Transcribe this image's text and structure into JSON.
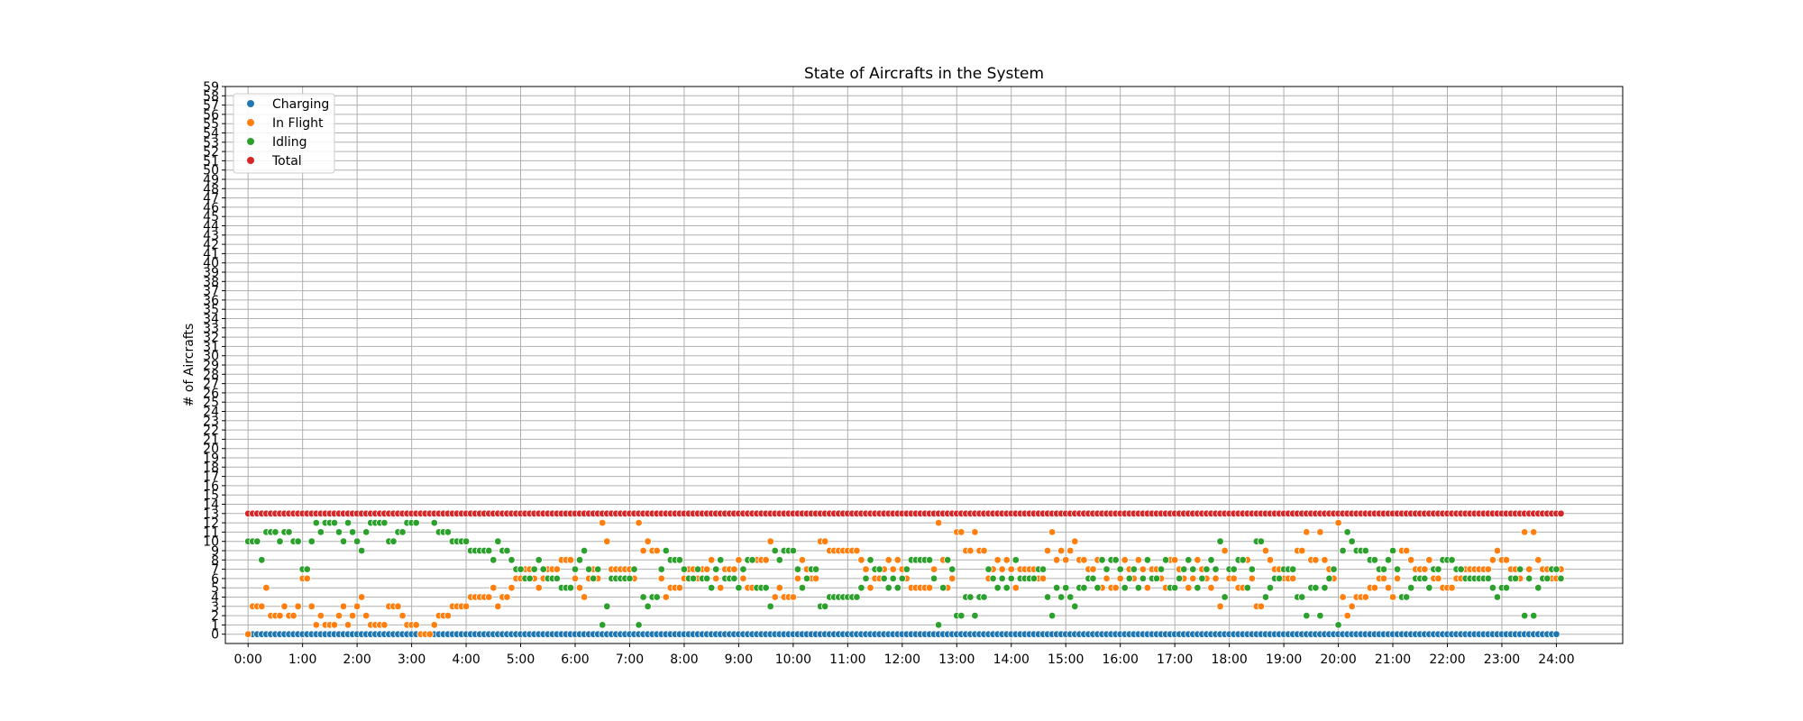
{
  "chart_data": {
    "type": "scatter",
    "title": "State of Aircrafts in the System",
    "xlabel": "",
    "ylabel": "# of Aircrafts",
    "xlim": [
      -25,
      1513
    ],
    "ylim": [
      -1,
      59
    ],
    "x_unit": "minutes since 0:00",
    "x_tick_values": [
      0,
      60,
      120,
      180,
      240,
      300,
      360,
      420,
      480,
      540,
      600,
      660,
      720,
      780,
      840,
      900,
      960,
      1020,
      1080,
      1140,
      1200,
      1260,
      1320,
      1380,
      1440
    ],
    "x_tick_labels": [
      "0:00",
      "1:00",
      "2:00",
      "3:00",
      "4:00",
      "5:00",
      "6:00",
      "7:00",
      "8:00",
      "9:00",
      "10:00",
      "11:00",
      "12:00",
      "13:00",
      "14:00",
      "15:00",
      "16:00",
      "17:00",
      "18:00",
      "19:00",
      "20:00",
      "21:00",
      "22:00",
      "23:00",
      "24:00"
    ],
    "y_ticks": [
      0,
      1,
      2,
      3,
      4,
      5,
      6,
      7,
      8,
      9,
      10,
      11,
      12,
      13,
      14,
      15,
      16,
      17,
      18,
      19,
      20,
      21,
      22,
      23,
      24,
      25,
      26,
      27,
      28,
      29,
      30,
      31,
      32,
      33,
      34,
      35,
      36,
      37,
      38,
      39,
      40,
      41,
      42,
      43,
      44,
      45,
      46,
      47,
      48,
      49,
      50,
      51,
      52,
      53,
      54,
      55,
      56,
      57,
      58,
      59
    ],
    "grid": true,
    "legend_position": "top-left",
    "sample_interval_min": 5,
    "series": [
      {
        "name": "Charging",
        "color": "#1f77b4",
        "x_start": 5,
        "x_end": 1440,
        "values_constant": 0
      },
      {
        "name": "In Flight",
        "color": "#ff7f0e",
        "x_start": 0,
        "x_end": 1445,
        "values": [
          0,
          3,
          3,
          3,
          5,
          2,
          2,
          2,
          3,
          2,
          2,
          3,
          6,
          6,
          3,
          1,
          2,
          1,
          1,
          1,
          2,
          3,
          1,
          2,
          3,
          4,
          2,
          1,
          1,
          1,
          1,
          3,
          3,
          3,
          2,
          1,
          1,
          1,
          0,
          0,
          0,
          1,
          2,
          2,
          2,
          3,
          3,
          3,
          3,
          4,
          4,
          4,
          4,
          4,
          5,
          3,
          4,
          4,
          5,
          6,
          6,
          7,
          7,
          6,
          5,
          6,
          7,
          7,
          7,
          8,
          8,
          8,
          6,
          5,
          4,
          6,
          7,
          6,
          12,
          10,
          7,
          7,
          7,
          7,
          7,
          6,
          12,
          9,
          10,
          9,
          9,
          6,
          4,
          5,
          5,
          5,
          6,
          7,
          7,
          6,
          7,
          7,
          8,
          6,
          5,
          7,
          7,
          7,
          8,
          6,
          5,
          5,
          8,
          8,
          8,
          10,
          4,
          5,
          4,
          4,
          4,
          6,
          8,
          7,
          6,
          6,
          10,
          10,
          9,
          9,
          9,
          9,
          9,
          9,
          9,
          8,
          7,
          5,
          6,
          6,
          7,
          8,
          7,
          8,
          7,
          6,
          5,
          5,
          5,
          5,
          5,
          7,
          12,
          8,
          5,
          6,
          11,
          11,
          9,
          9,
          11,
          9,
          9,
          6,
          7,
          8,
          7,
          8,
          7,
          5,
          7,
          7,
          7,
          7,
          6,
          6,
          9,
          11,
          8,
          9,
          8,
          9,
          10,
          8,
          8,
          7,
          7,
          8,
          5,
          6,
          5,
          5,
          6,
          8,
          7,
          6,
          8,
          7,
          5,
          7,
          7,
          6,
          5,
          8,
          8,
          7,
          6,
          5,
          6,
          8,
          7,
          6,
          5,
          6,
          3,
          9,
          6,
          6,
          5,
          5,
          8,
          6,
          3,
          3,
          9,
          8,
          7,
          7,
          6,
          6,
          6,
          9,
          9,
          11,
          8,
          8,
          11,
          8,
          7,
          6,
          12,
          4,
          2,
          3,
          4,
          4,
          4,
          5,
          5,
          6,
          6,
          5,
          4,
          6,
          9,
          9,
          8,
          7,
          7,
          7,
          8,
          6,
          6,
          5,
          5,
          5,
          6,
          6,
          7,
          7,
          7,
          7,
          7,
          7,
          8,
          9,
          8,
          8,
          7,
          7,
          6,
          11,
          7,
          11,
          8,
          7,
          7,
          6,
          6,
          7,
          7,
          8,
          8,
          7,
          6,
          6,
          7,
          8,
          6,
          7,
          7,
          10,
          8,
          7,
          8,
          9,
          6,
          10,
          10,
          8,
          7,
          7,
          7,
          7,
          9,
          9,
          5,
          5,
          5,
          5,
          6,
          8,
          5,
          5,
          0
        ]
      },
      {
        "name": "Idling",
        "color": "#2ca02c",
        "x_start": 0,
        "x_end": 1445,
        "values": [
          10,
          10,
          10,
          8,
          11,
          11,
          11,
          10,
          11,
          11,
          10,
          10,
          7,
          7,
          10,
          12,
          11,
          12,
          12,
          12,
          11,
          10,
          12,
          11,
          10,
          9,
          11,
          12,
          12,
          12,
          12,
          10,
          10,
          11,
          11,
          12,
          12,
          12,
          13,
          13,
          13,
          12,
          11,
          11,
          11,
          10,
          10,
          10,
          10,
          9,
          9,
          9,
          9,
          9,
          8,
          10,
          9,
          9,
          8,
          7,
          7,
          6,
          6,
          7,
          8,
          7,
          6,
          6,
          6,
          5,
          5,
          5,
          7,
          8,
          9,
          7,
          6,
          7,
          1,
          3,
          6,
          6,
          6,
          6,
          6,
          7,
          1,
          4,
          3,
          4,
          4,
          7,
          9,
          8,
          8,
          8,
          7,
          6,
          6,
          7,
          6,
          6,
          5,
          7,
          8,
          6,
          6,
          6,
          5,
          7,
          8,
          8,
          5,
          5,
          5,
          3,
          9,
          8,
          9,
          9,
          9,
          7,
          5,
          6,
          7,
          7,
          3,
          3,
          4,
          4,
          4,
          4,
          4,
          4,
          4,
          5,
          6,
          8,
          7,
          7,
          6,
          5,
          6,
          5,
          6,
          7,
          8,
          8,
          8,
          8,
          8,
          6,
          1,
          5,
          8,
          7,
          2,
          2,
          4,
          4,
          2,
          4,
          4,
          7,
          6,
          5,
          6,
          5,
          6,
          8,
          6,
          6,
          6,
          6,
          7,
          7,
          4,
          2,
          5,
          4,
          5,
          4,
          3,
          5,
          5,
          6,
          6,
          5,
          8,
          7,
          8,
          8,
          7,
          5,
          6,
          7,
          5,
          6,
          8,
          6,
          6,
          7,
          8,
          5,
          5,
          6,
          7,
          8,
          7,
          5,
          6,
          7,
          8,
          7,
          10,
          4,
          7,
          7,
          8,
          8,
          5,
          7,
          10,
          10,
          4,
          5,
          6,
          6,
          7,
          7,
          7,
          4,
          4,
          2,
          5,
          5,
          2,
          5,
          6,
          7,
          1,
          9,
          11,
          10,
          9,
          9,
          9,
          8,
          8,
          7,
          7,
          8,
          9,
          7,
          4,
          4,
          5,
          6,
          6,
          6,
          5,
          7,
          7,
          8,
          8,
          8,
          7,
          7,
          6,
          6,
          6,
          6,
          6,
          6,
          5,
          4,
          5,
          5,
          6,
          6,
          7,
          2,
          6,
          2,
          5,
          6,
          6,
          7,
          7,
          6,
          6,
          5,
          5,
          6,
          7,
          7,
          6,
          5,
          7,
          6,
          6,
          3,
          5,
          6,
          5,
          4,
          7,
          3,
          3,
          5,
          6,
          6,
          6,
          6,
          4,
          4,
          8,
          8,
          8,
          8,
          7,
          5,
          8,
          8,
          13
        ]
      },
      {
        "name": "Total",
        "color": "#d62728",
        "x_start": 0,
        "x_end": 1445,
        "values_constant": 13
      }
    ]
  }
}
